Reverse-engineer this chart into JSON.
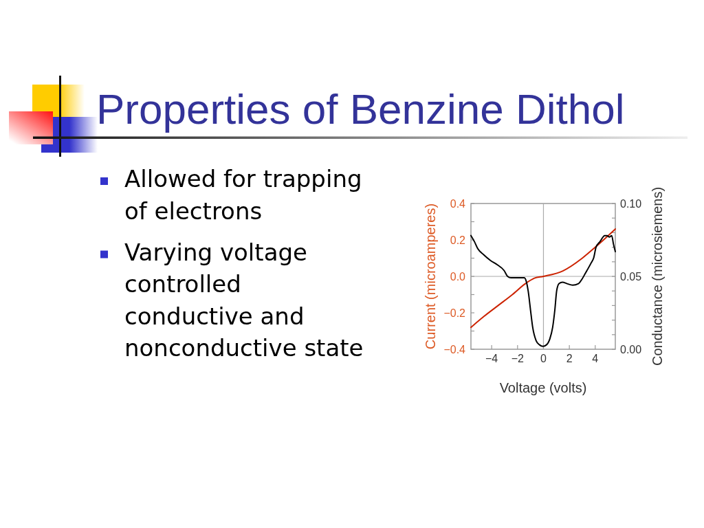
{
  "chart_data": [
    {
      "type": "other",
      "title": "Properties of Benzine Dithol",
      "annotations": [
        "Allowed for trapping of electrons",
        "Varying voltage controlled conductive and nonconductive state"
      ]
    },
    {
      "type": "line",
      "xlabel": "Voltage (volts)",
      "ylabel": "Current (microamperes)",
      "y2label": "Conductance (microsiemens)",
      "xlim": [
        -5.6,
        5.55
      ],
      "xticks": [
        {
          "value": -4,
          "label": "−4"
        },
        {
          "value": -2,
          "label": "−2"
        },
        0,
        2,
        4
      ],
      "ylim": [
        -0.4,
        0.4
      ],
      "yticks": [
        {
          "value": -0.4,
          "label": "−0.4"
        },
        {
          "value": -0.3,
          "label": null
        },
        {
          "value": -0.2,
          "label": "−0.2"
        },
        {
          "value": -0.1,
          "label": null
        },
        {
          "value": 0,
          "label": "0.0"
        },
        {
          "value": 0.1,
          "label": null
        },
        0.2,
        {
          "value": 0.3,
          "label": null
        },
        0.4
      ],
      "y2lim": [
        0,
        0.1
      ],
      "y2ticks": [
        {
          "value": 0,
          "label": "0.00"
        },
        {
          "value": 0.01,
          "label": null
        },
        {
          "value": 0.02,
          "label": null
        },
        {
          "value": 0.03,
          "label": null
        },
        {
          "value": 0.04,
          "label": null
        },
        {
          "value": 0.05,
          "label": "0.05"
        },
        {
          "value": 0.06,
          "label": null
        },
        {
          "value": 0.07,
          "label": null
        },
        {
          "value": 0.08,
          "label": null
        },
        {
          "value": 0.09,
          "label": null
        },
        {
          "value": 0.1,
          "label": "0.10"
        }
      ],
      "ref_lines": [
        {
          "axis": "x",
          "value": 0,
          "color": "#aaaaaa"
        },
        {
          "axis": "y2",
          "value": 0.05,
          "color": "#aaaaaa"
        }
      ],
      "series": [
        {
          "color": "#cc2200",
          "x": [
            -5.6,
            -4.6,
            -3.5,
            -2.4,
            -1.4,
            -0.7,
            0,
            1.5,
            3.0,
            4.0,
            5.55
          ],
          "values": [
            -0.28,
            -0.22,
            -0.16,
            -0.1,
            -0.04,
            -0.01,
            0,
            0.03,
            0.1,
            0.16,
            0.26
          ]
        },
        {
          "axis": "y2",
          "color": "#000000",
          "x": [
            -5.6,
            -5.34,
            -5.07,
            -4.63,
            -4.1,
            -3.57,
            -3.04,
            -2.77,
            -2.51,
            -1.98,
            -1.48,
            -1.31,
            -1.18,
            -1.0,
            -0.83,
            -0.57,
            -0.3,
            -0.04,
            0.23,
            0.49,
            0.71,
            0.88,
            1.02,
            1.2,
            1.47,
            1.82,
            2.26,
            2.7,
            2.97,
            3.23,
            3.67,
            3.89,
            4.06,
            4.38,
            4.73,
            4.91,
            5.09,
            5.27,
            5.41,
            5.55
          ],
          "values": [
            0.078,
            0.074,
            0.069,
            0.065,
            0.061,
            0.058,
            0.054,
            0.05,
            0.049,
            0.049,
            0.049,
            0.046,
            0.04,
            0.027,
            0.015,
            0.006,
            0.003,
            0.002,
            0.003,
            0.007,
            0.015,
            0.027,
            0.04,
            0.045,
            0.046,
            0.045,
            0.044,
            0.045,
            0.048,
            0.052,
            0.059,
            0.063,
            0.07,
            0.074,
            0.078,
            0.078,
            0.077,
            0.078,
            0.072,
            0.067
          ]
        }
      ]
    }
  ]
}
